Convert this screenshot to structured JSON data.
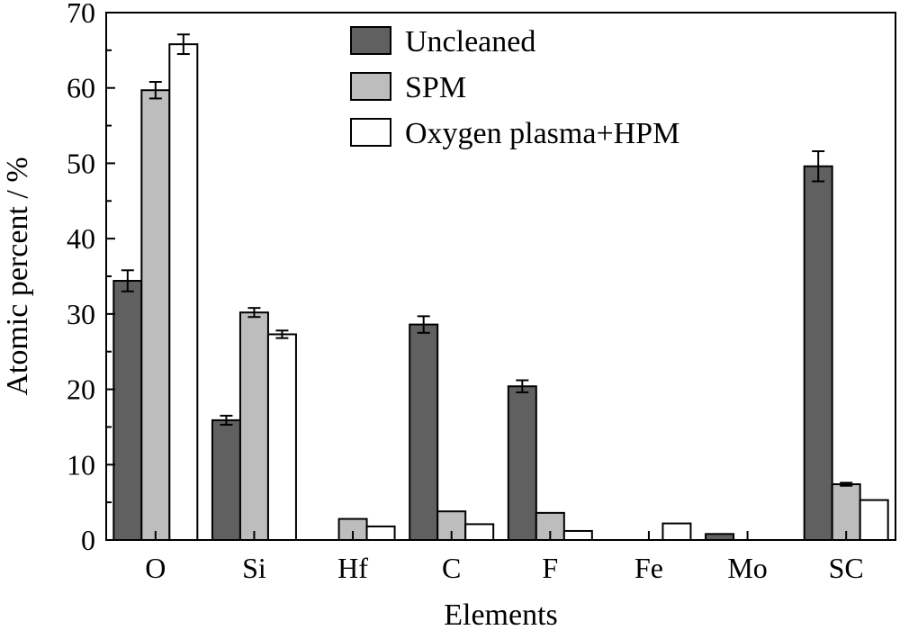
{
  "chart_data": {
    "type": "bar",
    "title": "",
    "xlabel": "Elements",
    "ylabel": "Atomic percent / %",
    "ylim": [
      0,
      70
    ],
    "yticks": [
      0,
      10,
      20,
      30,
      40,
      50,
      60,
      70
    ],
    "categories": [
      "O",
      "Si",
      "Hf",
      "C",
      "F",
      "Fe",
      "Mo",
      "SC"
    ],
    "legend_position": "top-center",
    "series": [
      {
        "name": "Uncleaned",
        "color": "#606060",
        "values": [
          34.4,
          15.9,
          0,
          28.6,
          20.4,
          0,
          0.8,
          49.6
        ],
        "errors": [
          1.4,
          0.6,
          0,
          1.1,
          0.8,
          0,
          0,
          2.0
        ]
      },
      {
        "name": "SPM",
        "color": "#bdbdbd",
        "values": [
          59.7,
          30.2,
          2.8,
          3.8,
          3.6,
          0,
          0,
          7.4
        ],
        "errors": [
          1.1,
          0.6,
          0,
          0,
          0,
          0,
          0,
          0.2
        ]
      },
      {
        "name": "Oxygen plasma+HPM",
        "color": "#ffffff",
        "values": [
          65.8,
          27.3,
          1.8,
          2.1,
          1.2,
          2.2,
          0,
          5.3
        ],
        "errors": [
          1.3,
          0.5,
          0,
          0,
          0,
          0,
          0,
          0
        ]
      }
    ]
  }
}
